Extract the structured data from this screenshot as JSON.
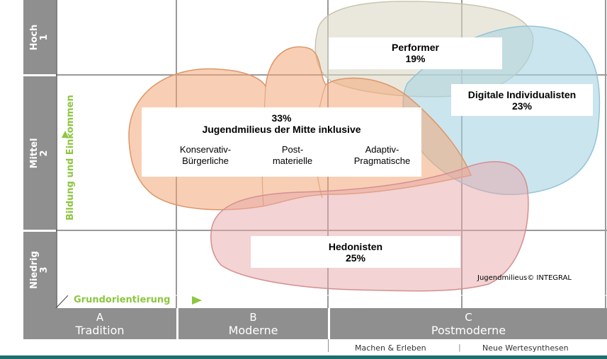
{
  "y_axis": {
    "title": "Bildung und Einkommen",
    "levels": [
      {
        "name": "Hoch",
        "number": "1"
      },
      {
        "name": "Mittel",
        "number": "2"
      },
      {
        "name": "Niedrig",
        "number": "3"
      }
    ]
  },
  "x_axis": {
    "title": "Grundorientierung",
    "segments": [
      {
        "letter": "A",
        "name": "Tradition"
      },
      {
        "letter": "B",
        "name": "Moderne"
      },
      {
        "letter": "C",
        "name": "Postmoderne"
      }
    ],
    "sub_segments": [
      "Machen & Erleben",
      "Neue Wertesynthesen"
    ],
    "sub_divider": "|"
  },
  "milieus": {
    "performer": {
      "name": "Performer",
      "share": "19%"
    },
    "digital": {
      "name": "Digitale Individualisten",
      "share": "23%"
    },
    "mitte": {
      "share": "33%",
      "name": "Jugendmilieus der Mitte inklusive",
      "members": [
        "Konservativ-\nBürgerliche",
        "Post-\nmaterielle",
        "Adaptiv-\nPragmatische"
      ]
    },
    "hedonisten": {
      "name": "Hedonisten",
      "share": "25%"
    }
  },
  "credit": "Jugendmilieus© INTEGRAL",
  "colors": {
    "band": "#8f8f8f",
    "accent": "#8dc63f",
    "orange": "#f2a878",
    "pink": "#e8a7a9",
    "blue": "#a9d3e3",
    "beige": "#dcd8c6",
    "bottom_line": "#1e6e6e"
  }
}
